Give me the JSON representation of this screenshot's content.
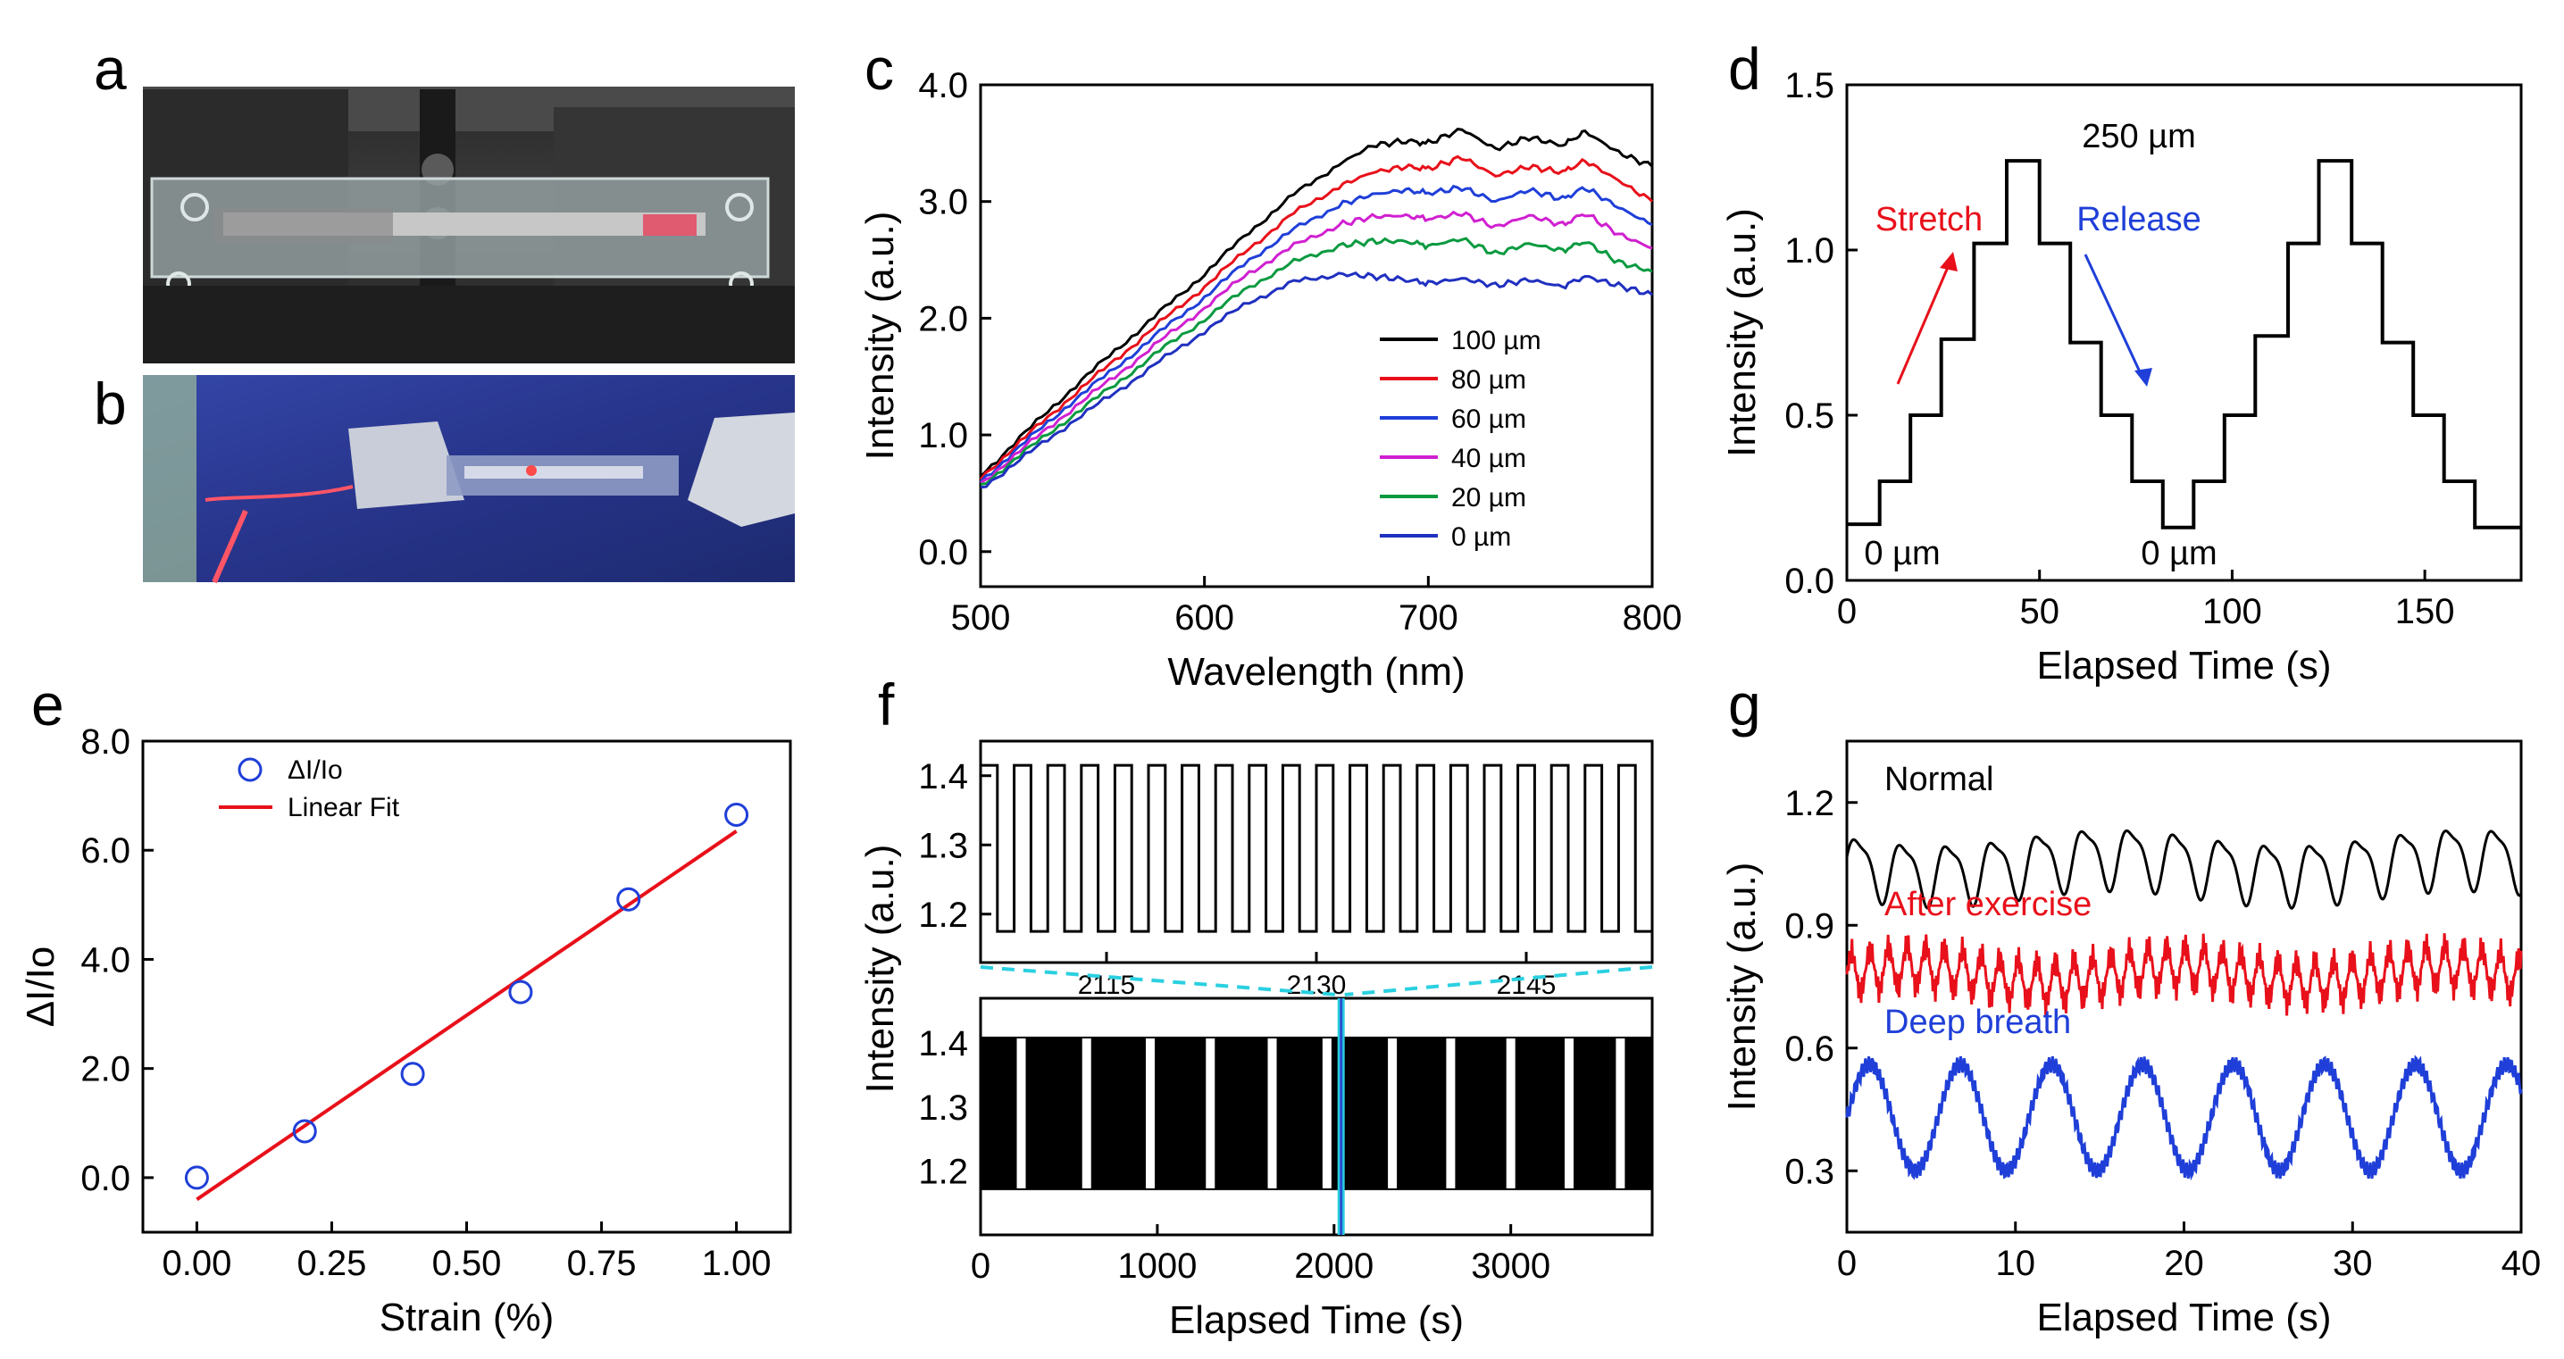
{
  "colors": {
    "black": "#000000",
    "red": "#e8101a",
    "blue": "#1f3fd8",
    "magenta": "#d020d0",
    "green": "#0a9a40",
    "blue2": "#2030c0",
    "cyan": "#2ad0e0"
  },
  "panel_labels": {
    "a": "a",
    "b": "b",
    "c": "c",
    "d": "d",
    "e": "e",
    "f": "f",
    "g": "g"
  },
  "chart_data": [
    {
      "id": "c",
      "type": "line",
      "xlabel": "Wavelength (nm)",
      "ylabel": "Intensity (a.u.)",
      "xlim": [
        500,
        800
      ],
      "ylim": [
        -0.3,
        4.0
      ],
      "xticks": [
        500,
        600,
        700,
        800
      ],
      "xtick_labels": [
        "500",
        "600",
        "700",
        "800"
      ],
      "yticks": [
        0,
        1,
        2,
        3,
        4
      ],
      "ytick_labels": [
        "0.0",
        "1.0",
        "2.0",
        "3.0",
        "4.0"
      ],
      "x": [
        500,
        520,
        540,
        560,
        580,
        600,
        620,
        640,
        660,
        675,
        690,
        700,
        715,
        730,
        745,
        760,
        770,
        785,
        800
      ],
      "series": [
        {
          "name": "100 µm",
          "color": "#000000",
          "values": [
            0.65,
            1.02,
            1.38,
            1.72,
            2.05,
            2.38,
            2.74,
            3.06,
            3.32,
            3.48,
            3.52,
            3.5,
            3.62,
            3.45,
            3.55,
            3.48,
            3.6,
            3.42,
            3.3
          ]
        },
        {
          "name": "80 µm",
          "color": "#e8101a",
          "values": [
            0.63,
            0.98,
            1.32,
            1.64,
            1.96,
            2.27,
            2.6,
            2.9,
            3.13,
            3.25,
            3.3,
            3.28,
            3.38,
            3.22,
            3.3,
            3.25,
            3.35,
            3.18,
            3.0
          ]
        },
        {
          "name": "60 µm",
          "color": "#1f3fd8",
          "values": [
            0.6,
            0.94,
            1.27,
            1.57,
            1.88,
            2.18,
            2.5,
            2.76,
            2.97,
            3.06,
            3.1,
            3.07,
            3.12,
            3.0,
            3.1,
            3.02,
            3.12,
            2.95,
            2.8
          ]
        },
        {
          "name": "40 µm",
          "color": "#d020d0",
          "values": [
            0.58,
            0.9,
            1.21,
            1.5,
            1.8,
            2.09,
            2.39,
            2.62,
            2.8,
            2.87,
            2.88,
            2.85,
            2.9,
            2.78,
            2.88,
            2.8,
            2.9,
            2.72,
            2.6
          ]
        },
        {
          "name": "20 µm",
          "color": "#0a9a40",
          "values": [
            0.56,
            0.86,
            1.15,
            1.43,
            1.72,
            1.99,
            2.27,
            2.48,
            2.62,
            2.66,
            2.66,
            2.62,
            2.68,
            2.55,
            2.64,
            2.58,
            2.66,
            2.48,
            2.4
          ]
        },
        {
          "name": "0 µm",
          "color": "#2030c0",
          "values": [
            0.54,
            0.82,
            1.1,
            1.36,
            1.63,
            1.89,
            2.14,
            2.31,
            2.38,
            2.36,
            2.33,
            2.3,
            2.34,
            2.28,
            2.33,
            2.27,
            2.36,
            2.28,
            2.2
          ]
        }
      ]
    },
    {
      "id": "d",
      "type": "line",
      "xlabel": "Elapsed Time (s)",
      "ylabel": "Intensity (a.u.)",
      "xlim": [
        0,
        175
      ],
      "ylim": [
        0,
        1.5
      ],
      "xticks": [
        0,
        50,
        100,
        150
      ],
      "xtick_labels": [
        "0",
        "50",
        "100",
        "150"
      ],
      "yticks": [
        0,
        0.5,
        1.0,
        1.5
      ],
      "ytick_labels": [
        "0.0",
        "0.5",
        "1.0",
        "1.5"
      ],
      "step_levels": [
        0.17,
        0.3,
        0.5,
        0.73,
        1.02,
        1.27,
        1.02,
        0.72,
        0.5,
        0.3,
        0.16,
        0.3,
        0.5,
        0.74,
        1.02,
        1.27,
        1.02,
        0.72,
        0.5,
        0.3,
        0.16
      ],
      "step_times": [
        0,
        8.5,
        16.5,
        24.5,
        33,
        41.5,
        50,
        58,
        66,
        74,
        82,
        90,
        98,
        106,
        114.5,
        122.5,
        131,
        139,
        147,
        155,
        163,
        175
      ],
      "annotations": {
        "top": "250 µm",
        "stretch": "Stretch",
        "release": "Release",
        "zero_left": "0 µm",
        "zero_right": "0 µm"
      }
    },
    {
      "id": "e",
      "type": "scatter",
      "xlabel": "Strain (%)",
      "ylabel": "ΔI/Io",
      "xlim": [
        -0.1,
        1.1
      ],
      "ylim": [
        -1.0,
        8.0
      ],
      "xticks": [
        0,
        0.25,
        0.5,
        0.75,
        1.0
      ],
      "xtick_labels": [
        "0.00",
        "0.25",
        "0.50",
        "0.75",
        "1.00"
      ],
      "yticks": [
        0,
        2,
        4,
        6,
        8
      ],
      "ytick_labels": [
        "0.0",
        "2.0",
        "4.0",
        "6.0",
        "8.0"
      ],
      "x": [
        0,
        0.2,
        0.4,
        0.6,
        0.8,
        1.0
      ],
      "values": [
        0.0,
        0.85,
        1.9,
        3.4,
        5.1,
        6.65
      ],
      "fit": {
        "x": [
          0,
          1.0
        ],
        "y": [
          -0.4,
          6.35
        ]
      },
      "legend": [
        "ΔI/Io",
        "Linear Fit"
      ]
    },
    {
      "id": "f",
      "type": "line",
      "xlabel": "Elapsed Time (s)",
      "ylabel": "Intensity (a.u.)",
      "top": {
        "xlim": [
          2106,
          2154
        ],
        "ylim": [
          1.13,
          1.45
        ],
        "yticks": [
          1.2,
          1.3,
          1.4
        ],
        "ytick_labels": [
          "1.2",
          "1.3",
          "1.4"
        ],
        "xticks": [
          2115,
          2130,
          2145
        ],
        "xtick_labels": [
          "2115",
          "2130",
          "2145"
        ],
        "high": 1.415,
        "low": 1.175,
        "period": 2.4
      },
      "bottom": {
        "xlim": [
          0,
          3800
        ],
        "ylim": [
          1.1,
          1.47
        ],
        "yticks": [
          1.2,
          1.3,
          1.4
        ],
        "ytick_labels": [
          "1.2",
          "1.3",
          "1.4"
        ],
        "xticks": [
          0,
          1000,
          2000,
          3000
        ],
        "xtick_labels": [
          "0",
          "1000",
          "2000",
          "3000"
        ],
        "gaps": [
          230,
          600,
          960,
          1300,
          1650,
          1960,
          2330,
          2660,
          3000,
          3330,
          3620
        ],
        "high": 1.41,
        "low": 1.17,
        "marker_x": 2040
      }
    },
    {
      "id": "g",
      "type": "line",
      "xlabel": "Elapsed Time (s)",
      "ylabel": "Intensity (a.u.)",
      "xlim": [
        0,
        40
      ],
      "ylim": [
        0.15,
        1.35
      ],
      "xticks": [
        0,
        10,
        20,
        30,
        40
      ],
      "xtick_labels": [
        "0",
        "10",
        "20",
        "30",
        "40"
      ],
      "yticks": [
        0.3,
        0.6,
        0.9,
        1.2
      ],
      "ytick_labels": [
        "0.3",
        "0.6",
        "0.9",
        "1.2"
      ],
      "series": [
        {
          "name": "Normal",
          "color": "#000000",
          "base": 1.05,
          "amp": 0.07,
          "period": 2.7
        },
        {
          "name": "After exercise",
          "color": "#e8101a",
          "base": 0.78,
          "amp": 0.05,
          "period": 1.1
        },
        {
          "name": "Deep breath",
          "color": "#1f3fd8",
          "base": 0.43,
          "amp": 0.13,
          "period": 5.4
        }
      ]
    }
  ]
}
